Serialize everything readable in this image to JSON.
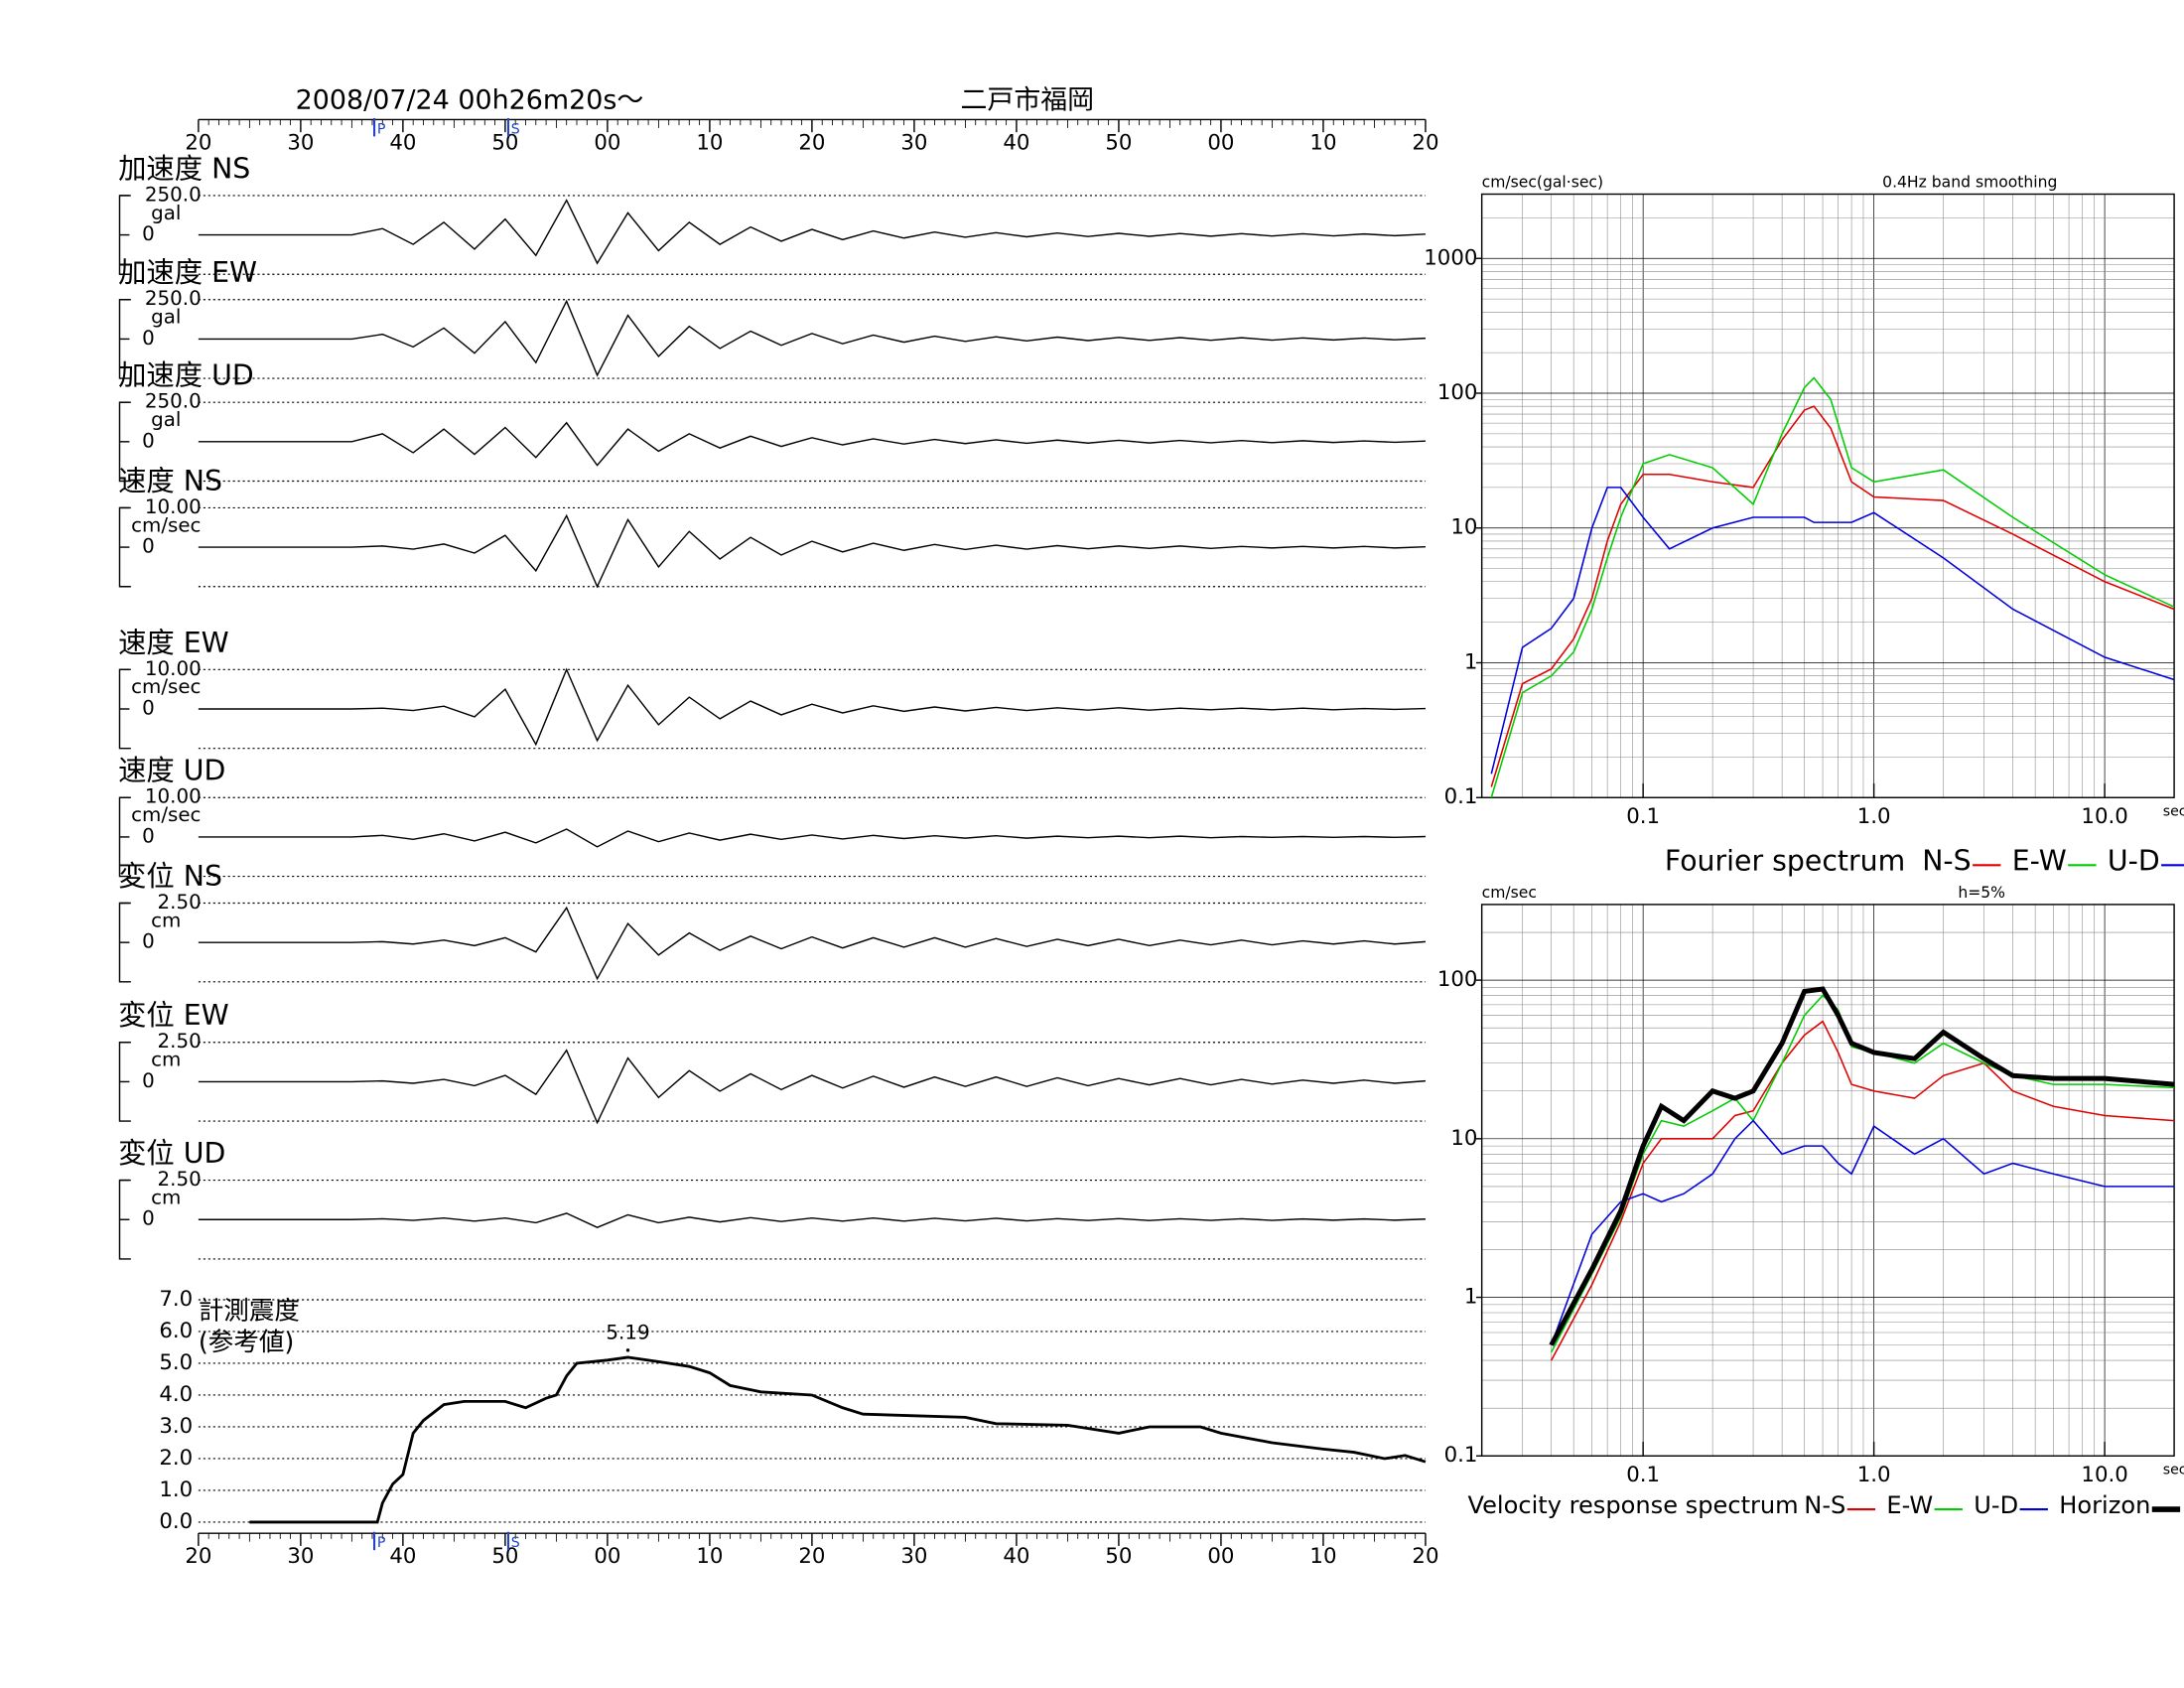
{
  "chart_data": [
    {
      "type": "waveform",
      "title": "2008/07/24  00h26m20s〜",
      "subtitle": "二戸市福岡",
      "xlim": [
        0,
        120
      ],
      "xticks": [
        {
          "value": 0,
          "label": "20"
        },
        {
          "value": 10,
          "label": "30"
        },
        {
          "value": 20,
          "label": "40"
        },
        {
          "value": 30,
          "label": "50"
        },
        {
          "value": 40,
          "label": "00"
        },
        {
          "value": 50,
          "label": "10"
        },
        {
          "value": 60,
          "label": "20"
        },
        {
          "value": 70,
          "label": "30"
        },
        {
          "value": 80,
          "label": "40"
        },
        {
          "value": 90,
          "label": "50"
        },
        {
          "value": 100,
          "label": "00"
        },
        {
          "value": 110,
          "label": "10"
        },
        {
          "value": 120,
          "label": "20"
        }
      ],
      "phase_markers": [
        {
          "label": "P",
          "t": 17.2
        },
        {
          "label": "S",
          "t": 30.3
        }
      ],
      "x": [
        0,
        15,
        18,
        21,
        24,
        27,
        30,
        33,
        36,
        39,
        42,
        45,
        48,
        51,
        54,
        57,
        60,
        63,
        66,
        69,
        72,
        75,
        78,
        81,
        84,
        87,
        90,
        93,
        96,
        99,
        102,
        105,
        108,
        111,
        114,
        117,
        120
      ],
      "series": [
        {
          "name": "加速度 NS",
          "unit": "gal",
          "ylim": [
            -250,
            250
          ],
          "yticks": [
            {
              "value": 250,
              "label": "250.0"
            },
            0
          ],
          "values": [
            0,
            0,
            40,
            -60,
            80,
            -90,
            100,
            -130,
            220,
            -180,
            140,
            -100,
            80,
            -60,
            50,
            -40,
            35,
            -30,
            25,
            -20,
            18,
            -15,
            14,
            -12,
            12,
            -10,
            10,
            -9,
            9,
            -8,
            8,
            -7,
            7,
            -6,
            6,
            -5,
            5
          ]
        },
        {
          "name": "加速度 EW",
          "unit": "gal",
          "ylim": [
            -250,
            250
          ],
          "yticks": [
            {
              "value": 250,
              "label": "250.0"
            },
            0
          ],
          "values": [
            0,
            0,
            30,
            -50,
            70,
            -90,
            110,
            -150,
            240,
            -230,
            150,
            -110,
            80,
            -60,
            50,
            -40,
            35,
            -30,
            25,
            -20,
            18,
            -15,
            14,
            -12,
            12,
            -10,
            10,
            -9,
            9,
            -8,
            8,
            -7,
            7,
            -6,
            6,
            -5,
            5
          ]
        },
        {
          "name": "加速度 UD",
          "unit": "gal",
          "ylim": [
            -250,
            250
          ],
          "yticks": [
            {
              "value": 250,
              "label": "250.0"
            },
            0
          ],
          "values": [
            0,
            0,
            50,
            -70,
            80,
            -80,
            90,
            -100,
            120,
            -150,
            80,
            -60,
            50,
            -40,
            35,
            -30,
            25,
            -20,
            18,
            -15,
            14,
            -12,
            12,
            -10,
            10,
            -9,
            9,
            -8,
            8,
            -7,
            7,
            -6,
            6,
            -5,
            5,
            -4,
            4
          ]
        },
        {
          "name": "速度 NS",
          "unit": "cm/sec",
          "ylim": [
            -10,
            10
          ],
          "yticks": [
            {
              "value": 10,
              "label": "10.00"
            },
            0
          ],
          "values": [
            0,
            0,
            0.3,
            -0.5,
            0.8,
            -1.5,
            3,
            -6,
            8,
            -10,
            7,
            -5,
            4,
            -3,
            2.5,
            -2,
            1.5,
            -1.2,
            1,
            -0.8,
            0.7,
            -0.6,
            0.5,
            -0.5,
            0.4,
            -0.4,
            0.3,
            -0.3,
            0.3,
            -0.3,
            0.2,
            -0.2,
            0.2,
            -0.2,
            0.2,
            -0.2,
            0.1
          ]
        },
        {
          "name": "速度 EW",
          "unit": "cm/sec",
          "ylim": [
            -10,
            10
          ],
          "yticks": [
            {
              "value": 10,
              "label": "10.00"
            },
            0
          ],
          "values": [
            0,
            0,
            0.2,
            -0.4,
            0.7,
            -2,
            5,
            -9,
            10,
            -8,
            6,
            -4,
            3,
            -2.5,
            2,
            -1.5,
            1.2,
            -1,
            0.8,
            -0.6,
            0.5,
            -0.5,
            0.4,
            -0.4,
            0.3,
            -0.3,
            0.3,
            -0.3,
            0.2,
            -0.2,
            0.2,
            -0.2,
            0.2,
            -0.2,
            0.1,
            -0.1,
            0.1
          ]
        },
        {
          "name": "速度 UD",
          "unit": "cm/sec",
          "ylim": [
            -10,
            10
          ],
          "yticks": [
            {
              "value": 10,
              "label": "10.00"
            },
            0
          ],
          "values": [
            0,
            0,
            0.4,
            -0.6,
            0.8,
            -1,
            1.2,
            -1.5,
            2,
            -2.5,
            1.5,
            -1.2,
            1,
            -0.8,
            0.7,
            -0.6,
            0.5,
            -0.5,
            0.4,
            -0.4,
            0.3,
            -0.3,
            0.3,
            -0.3,
            0.2,
            -0.2,
            0.2,
            -0.2,
            0.2,
            -0.2,
            0.1,
            -0.1,
            0.1,
            -0.1,
            0.1,
            -0.1,
            0.1
          ]
        },
        {
          "name": "変位 NS",
          "unit": "cm",
          "ylim": [
            -2.5,
            2.5
          ],
          "yticks": [
            {
              "value": 2.5,
              "label": "2.50"
            },
            0
          ],
          "values": [
            0,
            0,
            0.05,
            -0.1,
            0.15,
            -0.2,
            0.3,
            -0.6,
            2.2,
            -2.3,
            1.2,
            -0.8,
            0.6,
            -0.5,
            0.4,
            -0.4,
            0.35,
            -0.35,
            0.3,
            -0.3,
            0.3,
            -0.3,
            0.25,
            -0.25,
            0.2,
            -0.2,
            0.2,
            -0.2,
            0.15,
            -0.15,
            0.15,
            -0.15,
            0.1,
            -0.1,
            0.1,
            -0.1,
            0.05
          ]
        },
        {
          "name": "変位 EW",
          "unit": "cm",
          "ylim": [
            -2.5,
            2.5
          ],
          "yticks": [
            {
              "value": 2.5,
              "label": "2.50"
            },
            0
          ],
          "values": [
            0,
            0,
            0.05,
            -0.1,
            0.15,
            -0.25,
            0.4,
            -0.8,
            2.0,
            -2.6,
            1.5,
            -1,
            0.7,
            -0.6,
            0.5,
            -0.5,
            0.4,
            -0.4,
            0.35,
            -0.35,
            0.3,
            -0.3,
            0.3,
            -0.3,
            0.25,
            -0.25,
            0.2,
            -0.2,
            0.2,
            -0.2,
            0.15,
            -0.15,
            0.1,
            -0.1,
            0.1,
            -0.1,
            0.05
          ]
        },
        {
          "name": "変位 UD",
          "unit": "cm",
          "ylim": [
            -2.5,
            2.5
          ],
          "yticks": [
            {
              "value": 2.5,
              "label": "2.50"
            },
            0
          ],
          "values": [
            0,
            0,
            0.05,
            -0.05,
            0.1,
            -0.1,
            0.1,
            -0.2,
            0.4,
            -0.5,
            0.3,
            -0.2,
            0.15,
            -0.15,
            0.12,
            -0.12,
            0.1,
            -0.1,
            0.1,
            -0.1,
            0.08,
            -0.08,
            0.08,
            -0.08,
            0.06,
            -0.06,
            0.06,
            -0.06,
            0.05,
            -0.05,
            0.05,
            -0.05,
            0.04,
            -0.04,
            0.04,
            -0.04,
            0.03
          ]
        }
      ]
    },
    {
      "type": "intensity",
      "title": "計測震度",
      "subtitle": "(参考値)",
      "color": "#000000",
      "xlim": [
        0,
        120
      ],
      "xticks": [
        {
          "value": 0,
          "label": "20"
        },
        {
          "value": 10,
          "label": "30"
        },
        {
          "value": 20,
          "label": "40"
        },
        {
          "value": 30,
          "label": "50"
        },
        {
          "value": 40,
          "label": "00"
        },
        {
          "value": 50,
          "label": "10"
        },
        {
          "value": 60,
          "label": "20"
        },
        {
          "value": 70,
          "label": "30"
        },
        {
          "value": 80,
          "label": "40"
        },
        {
          "value": 90,
          "label": "50"
        },
        {
          "value": 100,
          "label": "00"
        },
        {
          "value": 110,
          "label": "10"
        },
        {
          "value": 120,
          "label": "20"
        }
      ],
      "phase_markers": [
        {
          "label": "P",
          "t": 17.2
        },
        {
          "label": "S",
          "t": 30.3
        }
      ],
      "ylim": [
        -0.35,
        7
      ],
      "yticks": [
        {
          "value": 0,
          "label": "0.0"
        },
        {
          "value": 1,
          "label": "1.0"
        },
        {
          "value": 2,
          "label": "2.0"
        },
        {
          "value": 3,
          "label": "3.0"
        },
        {
          "value": 4,
          "label": "4.0"
        },
        {
          "value": 5,
          "label": "5.0"
        },
        {
          "value": 6,
          "label": "6.0"
        },
        {
          "value": 7,
          "label": "7.0"
        }
      ],
      "grid": true,
      "x": [
        5,
        17.5,
        18,
        19,
        20,
        21,
        22,
        24,
        26,
        30,
        32,
        34,
        35,
        36,
        37,
        40,
        42,
        45,
        48,
        50,
        52,
        55,
        60,
        63,
        65,
        70,
        75,
        78,
        85,
        90,
        93,
        98,
        100,
        105,
        110,
        113,
        116,
        118,
        120
      ],
      "values": [
        0,
        0,
        0.6,
        1.2,
        1.5,
        2.8,
        3.2,
        3.7,
        3.8,
        3.8,
        3.6,
        3.9,
        4.0,
        4.6,
        5.0,
        5.1,
        5.19,
        5.05,
        4.9,
        4.7,
        4.3,
        4.1,
        4.0,
        3.6,
        3.4,
        3.35,
        3.3,
        3.1,
        3.05,
        2.8,
        3.0,
        3.0,
        2.8,
        2.5,
        2.3,
        2.2,
        2.0,
        2.1,
        1.9
      ],
      "annotations": [
        {
          "text": "5.19",
          "x": 42,
          "y": 5.19
        }
      ]
    },
    {
      "type": "line",
      "log_x": true,
      "log_y": true,
      "title": "Fourier spectrum",
      "y_label": "cm/sec(gal·sec)",
      "note": "0.4Hz band smoothing",
      "x_unit": "sec",
      "xlim": [
        0.02,
        20
      ],
      "xticks": [
        {
          "value": 0.1,
          "label": "0.1"
        },
        {
          "value": 1,
          "label": "1.0"
        },
        {
          "value": 10,
          "label": "10.0"
        }
      ],
      "ylim": [
        0.1,
        3000
      ],
      "yticks": [
        0.1,
        1,
        10,
        100,
        1000
      ],
      "grid": true,
      "x": [
        0.022,
        0.03,
        0.04,
        0.05,
        0.06,
        0.07,
        0.08,
        0.1,
        0.13,
        0.2,
        0.3,
        0.4,
        0.5,
        0.55,
        0.65,
        0.8,
        1.0,
        2.0,
        4.0,
        10,
        20
      ],
      "series": [
        {
          "name": "N-S",
          "color": "#e00000",
          "values": [
            0.12,
            0.7,
            0.9,
            1.5,
            3,
            8,
            15,
            25,
            25,
            22,
            20,
            45,
            75,
            80,
            55,
            22,
            17,
            16,
            9,
            4,
            2.5
          ]
        },
        {
          "name": "E-W",
          "color": "#00cc00",
          "values": [
            0.1,
            0.6,
            0.8,
            1.2,
            2.5,
            6,
            12,
            30,
            35,
            28,
            15,
            50,
            110,
            130,
            90,
            28,
            22,
            27,
            12,
            4.5,
            2.6
          ]
        },
        {
          "name": "U-D",
          "color": "#0000dd",
          "values": [
            0.15,
            1.3,
            1.8,
            3,
            10,
            20,
            20,
            12,
            7,
            10,
            12,
            12,
            12,
            11,
            11,
            11,
            13,
            6,
            2.5,
            1.1,
            0.75
          ]
        }
      ]
    },
    {
      "type": "line",
      "log_x": true,
      "log_y": true,
      "title": "Velocity response spectrum",
      "y_label": "cm/sec",
      "note": "h=5%",
      "x_unit": "sec",
      "xlim": [
        0.02,
        20
      ],
      "xticks": [
        {
          "value": 0.1,
          "label": "0.1"
        },
        {
          "value": 1,
          "label": "1.0"
        },
        {
          "value": 10,
          "label": "10.0"
        }
      ],
      "ylim": [
        0.1,
        300
      ],
      "yticks": [
        0.1,
        1,
        10,
        100
      ],
      "grid": true,
      "x": [
        0.04,
        0.06,
        0.08,
        0.1,
        0.12,
        0.15,
        0.2,
        0.25,
        0.3,
        0.4,
        0.5,
        0.6,
        0.7,
        0.8,
        1.0,
        1.5,
        2.0,
        3.0,
        4.0,
        6.0,
        10,
        20
      ],
      "series": [
        {
          "name": "N-S",
          "color": "#e00000",
          "values": [
            0.4,
            1.2,
            3,
            7,
            10,
            10,
            10,
            14,
            15,
            30,
            45,
            55,
            35,
            22,
            20,
            18,
            25,
            30,
            20,
            16,
            14,
            13
          ]
        },
        {
          "name": "E-W",
          "color": "#00cc00",
          "values": [
            0.45,
            1.4,
            3.2,
            8,
            13,
            12,
            15,
            18,
            13,
            30,
            60,
            80,
            65,
            38,
            35,
            30,
            40,
            30,
            25,
            22,
            22,
            21
          ]
        },
        {
          "name": "U-D",
          "color": "#0000dd",
          "values": [
            0.5,
            2.5,
            4,
            4.5,
            4,
            4.5,
            6,
            10,
            13,
            8,
            9,
            9,
            7,
            6,
            12,
            8,
            10,
            6,
            7,
            6,
            5,
            5
          ]
        },
        {
          "name": "Horizon",
          "color": "#000000",
          "values": [
            0.5,
            1.5,
            3.5,
            9,
            16,
            13,
            20,
            18,
            20,
            40,
            85,
            88,
            60,
            40,
            35,
            32,
            47,
            32,
            25,
            24,
            24,
            22
          ]
        }
      ]
    }
  ]
}
